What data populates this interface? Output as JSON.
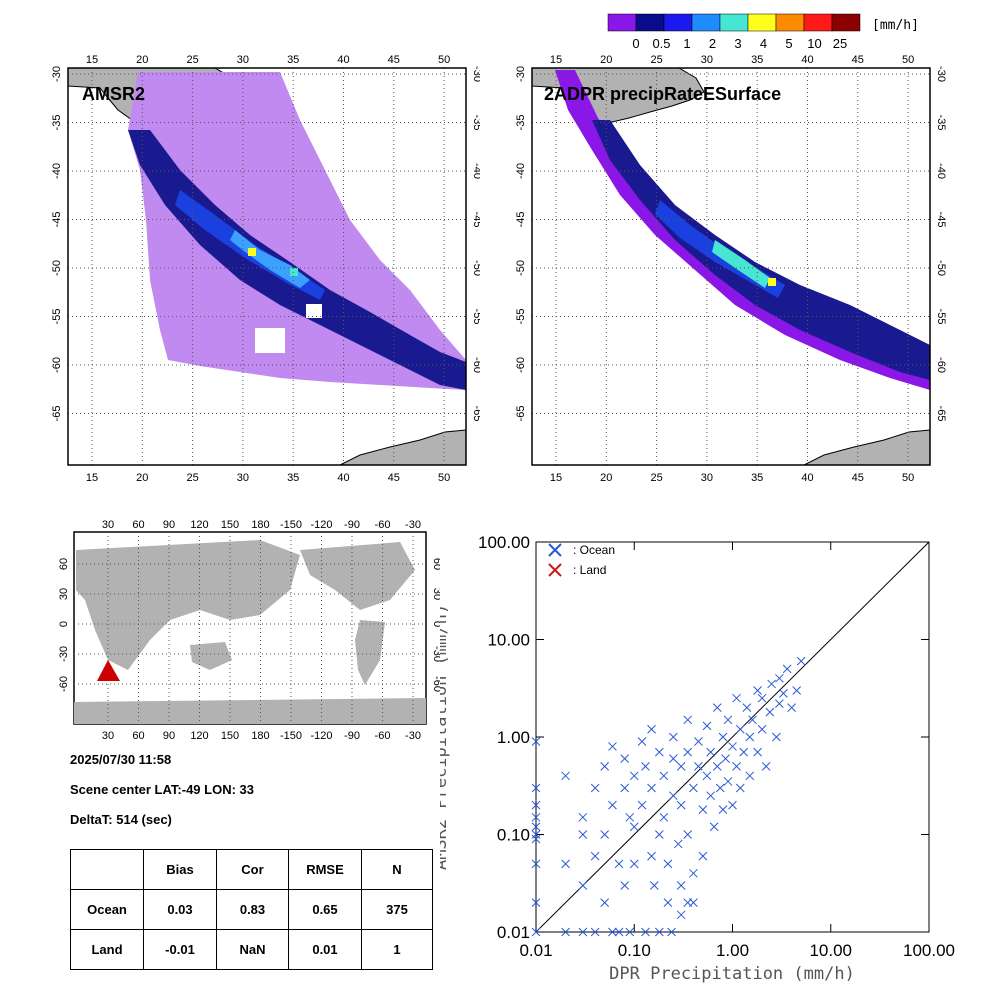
{
  "colorbar": {
    "unit": "[mm/h]",
    "tick_labels": [
      "0",
      "0.5",
      "1",
      "2",
      "3",
      "4",
      "5",
      "10",
      "25"
    ],
    "colors": [
      "#8a16e8",
      "#0a0a8c",
      "#1a1aee",
      "#1e8cff",
      "#46e6d2",
      "#ffff1e",
      "#ff8c00",
      "#ff1a1a",
      "#8c0000"
    ]
  },
  "map_left": {
    "title": "AMSR2",
    "lon_ticks": [
      "15",
      "20",
      "25",
      "30",
      "35",
      "40",
      "45",
      "50"
    ],
    "lat_ticks": [
      "-30",
      "-35",
      "-40",
      "-45",
      "-50",
      "-55",
      "-60",
      "-65"
    ]
  },
  "map_right": {
    "title": "2ADPR precipRateESurface",
    "lon_ticks": [
      "15",
      "20",
      "25",
      "30",
      "35",
      "40",
      "45",
      "50"
    ],
    "lat_ticks": [
      "-30",
      "-35",
      "-40",
      "-45",
      "-50",
      "-55",
      "-60",
      "-65"
    ]
  },
  "globe": {
    "lon_ticks": [
      "30",
      "60",
      "90",
      "120",
      "150",
      "180",
      "-150",
      "-120",
      "-90",
      "-60",
      "-30"
    ],
    "lat_ticks": [
      "60",
      "30",
      "0",
      "-30",
      "-60"
    ]
  },
  "info": {
    "datetime": "2025/07/30 11:58",
    "scene_center": "Scene center LAT:-49   LON:  33",
    "deltat": "DeltaT:  514 (sec)"
  },
  "stats": {
    "headers": [
      "",
      "Bias",
      "Cor",
      "RMSE",
      "N"
    ],
    "rows": [
      [
        "Ocean",
        "0.03",
        "0.83",
        "0.65",
        "375"
      ],
      [
        "Land",
        "-0.01",
        "NaN",
        "0.01",
        "1"
      ]
    ]
  },
  "chart_data": {
    "type": "scatter",
    "xlabel": "DPR Precipitation (mm/h)",
    "ylabel": "AMSR2 Precipitation (mm/h)",
    "xscale": "log",
    "yscale": "log",
    "xlim": [
      0.01,
      100
    ],
    "ylim": [
      0.01,
      100
    ],
    "tick_labels": [
      "0.01",
      "0.10",
      "1.00",
      "10.00",
      "100.00"
    ],
    "legend_placement": "top-left",
    "series": [
      {
        "name": ": Ocean",
        "marker": "x",
        "color": "#2a5ad8",
        "points": [
          [
            0.01,
            0.9
          ],
          [
            0.01,
            0.3
          ],
          [
            0.01,
            0.2
          ],
          [
            0.01,
            0.15
          ],
          [
            0.01,
            0.12
          ],
          [
            0.01,
            0.1
          ],
          [
            0.01,
            0.09
          ],
          [
            0.01,
            0.05
          ],
          [
            0.01,
            0.02
          ],
          [
            0.01,
            0.01
          ],
          [
            0.02,
            0.4
          ],
          [
            0.02,
            0.05
          ],
          [
            0.02,
            0.01
          ],
          [
            0.03,
            0.15
          ],
          [
            0.03,
            0.1
          ],
          [
            0.03,
            0.03
          ],
          [
            0.03,
            0.01
          ],
          [
            0.04,
            0.3
          ],
          [
            0.04,
            0.06
          ],
          [
            0.05,
            0.5
          ],
          [
            0.05,
            0.1
          ],
          [
            0.05,
            0.02
          ],
          [
            0.06,
            0.8
          ],
          [
            0.06,
            0.2
          ],
          [
            0.07,
            0.05
          ],
          [
            0.07,
            0.01
          ],
          [
            0.08,
            0.6
          ],
          [
            0.08,
            0.3
          ],
          [
            0.08,
            0.03
          ],
          [
            0.09,
            0.15
          ],
          [
            0.1,
            0.4
          ],
          [
            0.1,
            0.12
          ],
          [
            0.1,
            0.05
          ],
          [
            0.12,
            0.9
          ],
          [
            0.12,
            0.2
          ],
          [
            0.13,
            0.5
          ],
          [
            0.15,
            1.2
          ],
          [
            0.15,
            0.3
          ],
          [
            0.15,
            0.06
          ],
          [
            0.16,
            0.03
          ],
          [
            0.18,
            0.7
          ],
          [
            0.18,
            0.1
          ],
          [
            0.2,
            0.4
          ],
          [
            0.2,
            0.15
          ],
          [
            0.22,
            0.05
          ],
          [
            0.25,
            1.0
          ],
          [
            0.25,
            0.6
          ],
          [
            0.25,
            0.25
          ],
          [
            0.28,
            0.08
          ],
          [
            0.3,
            0.5
          ],
          [
            0.3,
            0.2
          ],
          [
            0.3,
            0.03
          ],
          [
            0.35,
            1.5
          ],
          [
            0.35,
            0.7
          ],
          [
            0.35,
            0.1
          ],
          [
            0.4,
            0.3
          ],
          [
            0.4,
            0.04
          ],
          [
            0.45,
            0.9
          ],
          [
            0.45,
            0.5
          ],
          [
            0.5,
            0.18
          ],
          [
            0.5,
            0.06
          ],
          [
            0.55,
            1.3
          ],
          [
            0.55,
            0.4
          ],
          [
            0.6,
            0.7
          ],
          [
            0.6,
            0.25
          ],
          [
            0.65,
            0.12
          ],
          [
            0.7,
            2.0
          ],
          [
            0.7,
            0.5
          ],
          [
            0.75,
            0.3
          ],
          [
            0.8,
            1.0
          ],
          [
            0.8,
            0.18
          ],
          [
            0.85,
            0.6
          ],
          [
            0.9,
            1.5
          ],
          [
            0.9,
            0.35
          ],
          [
            1.0,
            0.8
          ],
          [
            1.0,
            0.2
          ],
          [
            1.1,
            2.5
          ],
          [
            1.1,
            0.5
          ],
          [
            1.2,
            1.2
          ],
          [
            1.2,
            0.3
          ],
          [
            1.3,
            0.7
          ],
          [
            1.4,
            2.0
          ],
          [
            1.5,
            1.0
          ],
          [
            1.5,
            0.4
          ],
          [
            1.6,
            1.5
          ],
          [
            1.8,
            3.0
          ],
          [
            1.8,
            0.7
          ],
          [
            2.0,
            1.2
          ],
          [
            2.0,
            2.5
          ],
          [
            2.2,
            0.5
          ],
          [
            2.4,
            1.8
          ],
          [
            2.5,
            3.5
          ],
          [
            2.8,
            1.0
          ],
          [
            3.0,
            2.2
          ],
          [
            3.0,
            4.0
          ],
          [
            3.3,
            2.8
          ],
          [
            3.6,
            5.0
          ],
          [
            4.0,
            2.0
          ],
          [
            4.5,
            3.0
          ],
          [
            5.0,
            6.0
          ],
          [
            0.04,
            0.01
          ],
          [
            0.06,
            0.01
          ],
          [
            0.09,
            0.01
          ],
          [
            0.13,
            0.01
          ],
          [
            0.18,
            0.01
          ],
          [
            0.24,
            0.01
          ],
          [
            0.3,
            0.015
          ],
          [
            0.35,
            0.02
          ],
          [
            0.4,
            0.02
          ],
          [
            0.22,
            0.02
          ]
        ]
      },
      {
        "name": ": Land",
        "marker": "x",
        "color": "#cc1a1a",
        "points": []
      }
    ]
  }
}
